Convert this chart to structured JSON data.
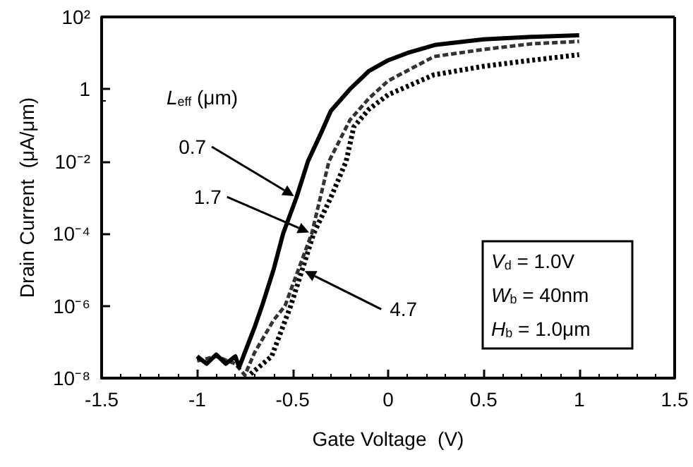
{
  "chart_data": {
    "type": "line",
    "xlabel": "Gate Voltage  (V)",
    "ylabel": "Drain Current  (μA/μm)",
    "legend_title": "L$_{eff}$ (μm)",
    "xlim": [
      -1.5,
      1.5
    ],
    "xticks": [
      -1.5,
      -1,
      -0.5,
      0,
      0.5,
      1,
      1.5
    ],
    "ylim": [
      1e-08,
      100
    ],
    "log": "y",
    "yticks": [
      {
        "value": 1e-08,
        "label": "10⁻⁸"
      },
      {
        "value": 1e-06,
        "label": "10⁻⁶"
      },
      {
        "value": 0.0001,
        "label": "10⁻⁴"
      },
      {
        "value": 0.01,
        "label": "10⁻²"
      },
      {
        "value": 1,
        "label": "1"
      },
      {
        "value": 100,
        "label": "10²"
      }
    ],
    "grid": false,
    "marker": "none",
    "series": [
      {
        "color": "#000000",
        "line_style": "solid",
        "x": [
          -1.0,
          -0.95,
          -0.9,
          -0.85,
          -0.8,
          -0.78,
          -0.7,
          -0.66,
          -0.6,
          -0.55,
          -0.48,
          -0.42,
          -0.35,
          -0.3,
          -0.2,
          -0.1,
          0,
          0.1,
          0.25,
          0.5,
          0.75,
          1.0
        ],
        "values": [
          4e-08,
          2.5e-08,
          4.5e-08,
          2.5e-08,
          4e-08,
          2e-08,
          2.5e-07,
          1e-06,
          1e-05,
          0.0001,
          0.001,
          0.01,
          0.063,
          0.25,
          1,
          3.2,
          6.3,
          10,
          17,
          24,
          28,
          31
        ]
      },
      {
        "color": "#333333",
        "line_style": "dashed",
        "x": [
          -1.0,
          -0.9,
          -0.8,
          -0.75,
          -0.7,
          -0.6,
          -0.54,
          -0.47,
          -0.4,
          -0.31,
          -0.2,
          -0.1,
          0,
          0.24,
          0.5,
          0.75,
          1.0
        ],
        "values": [
          3e-08,
          4e-08,
          2.5e-08,
          1.2e-08,
          5e-08,
          4e-07,
          1e-06,
          1e-05,
          0.0001,
          0.01,
          0.14,
          0.56,
          1.7,
          8,
          12.6,
          18,
          21
        ]
      },
      {
        "color": "#000000",
        "line_style": "dotted",
        "x": [
          -0.72,
          -0.61,
          -0.51,
          -0.45,
          -0.39,
          -0.3,
          -0.22,
          -0.18,
          -0.1,
          0,
          0.24,
          0.5,
          0.75,
          1.0
        ],
        "values": [
          1.3e-08,
          4e-08,
          1e-06,
          1e-05,
          0.0001,
          0.001,
          0.01,
          0.09,
          0.28,
          0.7,
          2.5,
          4.3,
          6.3,
          9
        ]
      }
    ],
    "annotations": [
      "0.7",
      "1.7",
      "4.7",
      "V$_{d}$ = 1.0V",
      "W$_{b}$ = 40nm",
      "H$_{b}$ = 1.0μm"
    ]
  }
}
